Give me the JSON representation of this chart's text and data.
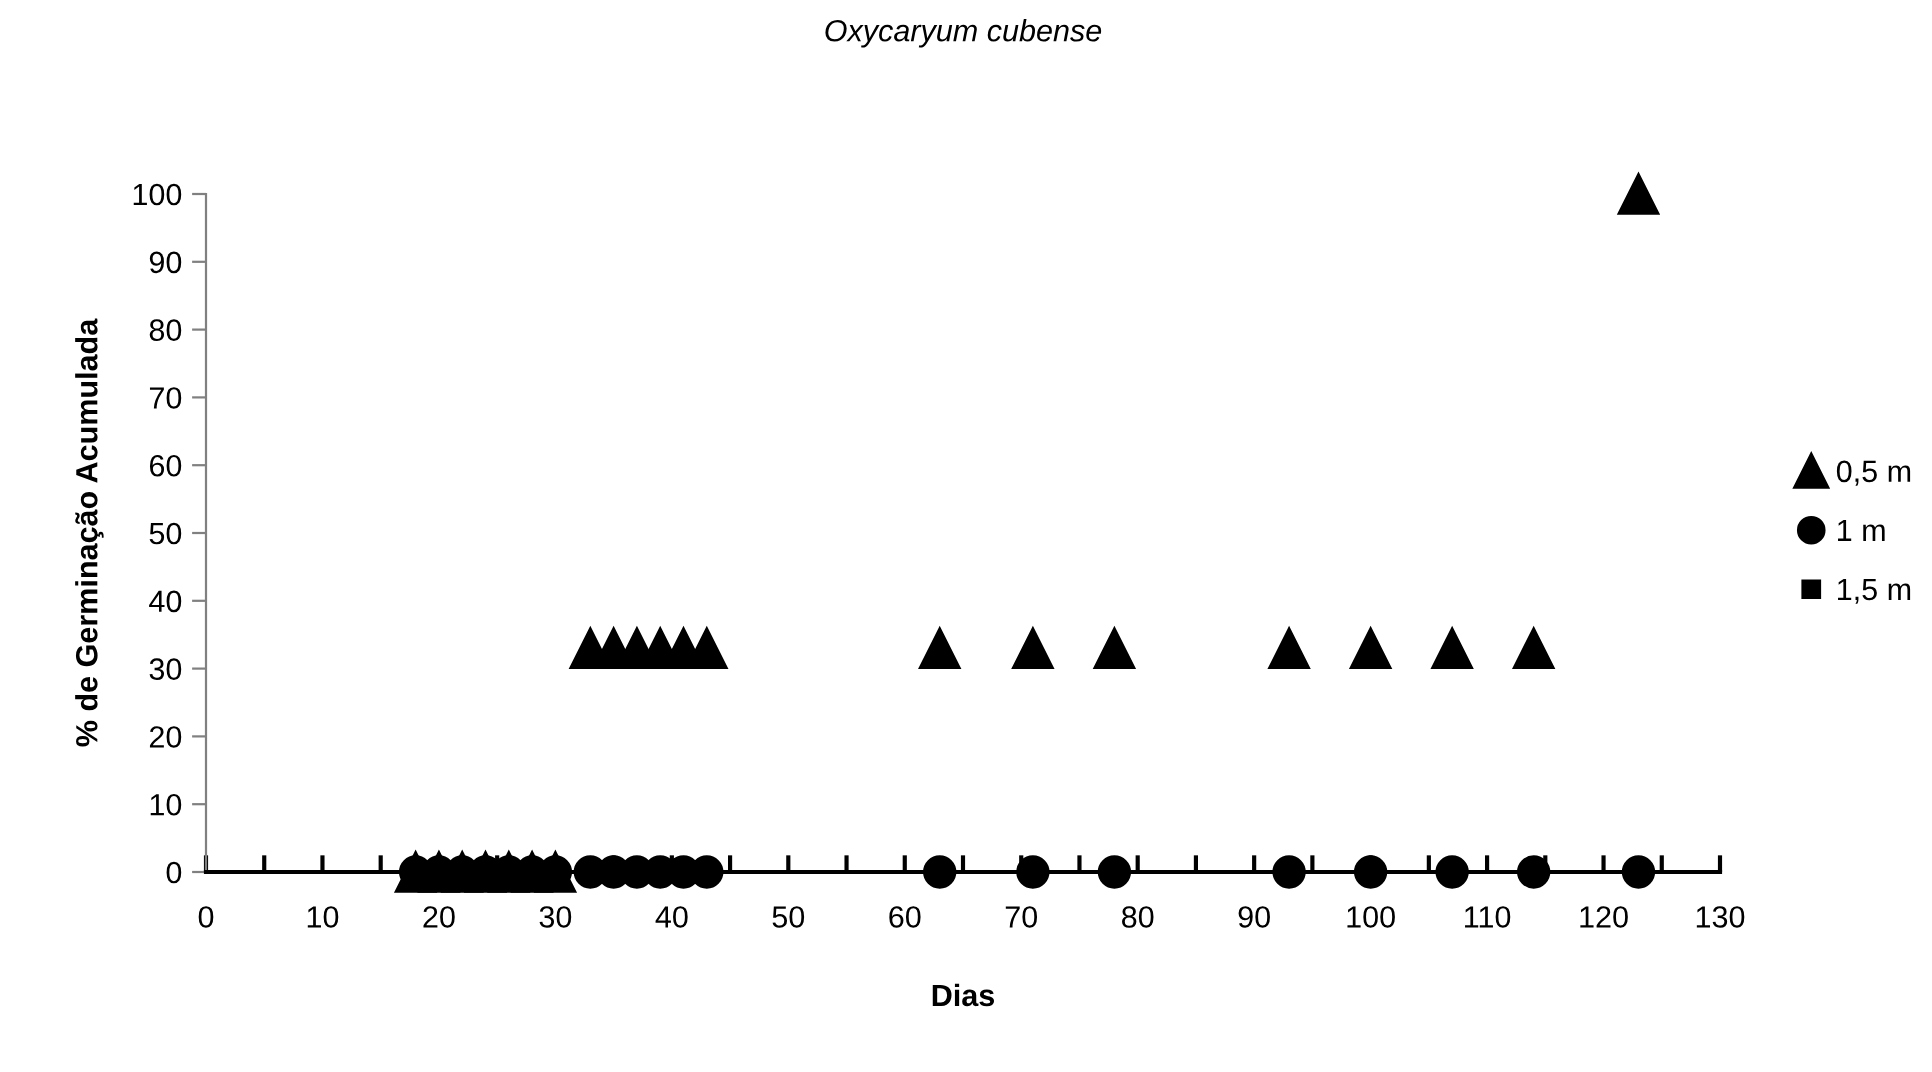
{
  "chart_data": {
    "type": "scatter",
    "title": "Oxycaryum cubense",
    "xlabel": "Dias",
    "ylabel": "% de Germinação Acumulada",
    "series": [
      {
        "name": "0,5 m",
        "color": "#000000",
        "marker": "triangle",
        "x": [
          18,
          20,
          22,
          24,
          26,
          28,
          30,
          33,
          35,
          37,
          39,
          41,
          43,
          63,
          71,
          78,
          93,
          100,
          107,
          114,
          123
        ],
        "values": [
          0,
          0,
          0,
          0,
          0,
          0,
          0,
          33,
          33,
          33,
          33,
          33,
          33,
          33,
          33,
          33,
          33,
          33,
          33,
          33,
          100
        ]
      },
      {
        "name": "1 m",
        "color": "#000000",
        "marker": "circle",
        "x": [
          18,
          20,
          22,
          24,
          26,
          28,
          30,
          33,
          35,
          37,
          39,
          41,
          43,
          63,
          71,
          78,
          93,
          100,
          107,
          114,
          123
        ],
        "values": [
          0,
          0,
          0,
          0,
          0,
          0,
          0,
          0,
          0,
          0,
          0,
          0,
          0,
          0,
          0,
          0,
          0,
          0,
          0,
          0,
          0
        ]
      },
      {
        "name": "1,5 m",
        "color": "#000000",
        "marker": "square"
      }
    ],
    "xlim": [
      0,
      130
    ],
    "xticks": [
      0,
      {
        "value": 5,
        "label": null
      },
      10,
      {
        "value": 15,
        "label": null
      },
      20,
      {
        "value": 25,
        "label": null
      },
      30,
      {
        "value": 35,
        "label": null
      },
      40,
      {
        "value": 45,
        "label": null
      },
      50,
      {
        "value": 55,
        "label": null
      },
      60,
      {
        "value": 65,
        "label": null
      },
      70,
      {
        "value": 75,
        "label": null
      },
      80,
      {
        "value": 85,
        "label": null
      },
      90,
      {
        "value": 95,
        "label": null
      },
      100,
      {
        "value": 105,
        "label": null
      },
      110,
      {
        "value": 115,
        "label": null
      },
      120,
      {
        "value": 125,
        "label": null
      },
      130
    ],
    "ylim": [
      0,
      100
    ],
    "yticks": [
      0,
      10,
      20,
      30,
      40,
      50,
      60,
      70,
      80,
      90,
      100
    ],
    "grid": false,
    "legend": "right"
  }
}
